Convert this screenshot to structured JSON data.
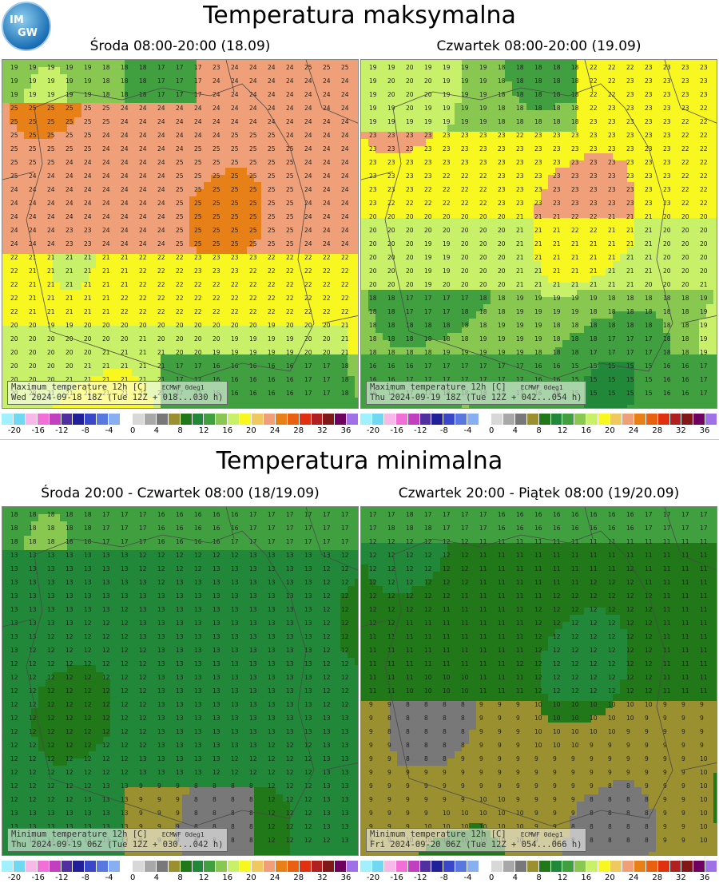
{
  "logo": {
    "text_top": "IM",
    "text_bottom": "GW"
  },
  "sections": {
    "max": {
      "title": "Temperatura maksymalna"
    },
    "min": {
      "title": "Temperatura minimalna"
    }
  },
  "panels": [
    {
      "id": "max-wed",
      "title": "Środa 08:00-20:00 (18.09)",
      "label_line1": "Maximum temperature 12h [C]",
      "label_src": "ECMWF 0deg1",
      "label_line2": "Wed 2024-09-18 18Z (Tue 12Z + 018...030 h)",
      "dominant": 24
    },
    {
      "id": "max-thu",
      "title": "Czwartek 08:00-20:00 (19.09)",
      "label_line1": "Maximum temperature 12h [C]",
      "label_src": "ECMWF 0deg1",
      "label_line2": "Thu 2024-09-19 18Z (Tue 12Z + 042...054 h)",
      "dominant": 22
    },
    {
      "id": "min-wed-thu",
      "title": "Środa 20:00 - Czwartek 08:00 (18/19.09)",
      "label_line1": "Minimum temperature 12h [C]",
      "label_src": "ECMWF 0deg1",
      "label_line2": "Thu 2024-09-19 06Z (Tue 12Z + 030...042 h)",
      "dominant": 13
    },
    {
      "id": "min-thu-fri",
      "title": "Czwartek 20:00 - Piątek 08:00 (19/20.09)",
      "label_line1": "Minimum temperature 12h [C]",
      "label_src": "ECMWF 0deg1",
      "label_line2": "Fri 2024-09-20 06Z (Tue 12Z + 054...066 h)",
      "dominant": 11
    }
  ],
  "colorbar": {
    "colors": [
      "#a0f0ff",
      "#70d8f0",
      "#f8b8e8",
      "#f070d8",
      "#c040c0",
      "#5030a0",
      "#202098",
      "#3848c8",
      "#5878e0",
      "#88b0f0",
      "#ffffff",
      "#d8d8d8",
      "#a8a8a8",
      "#787878",
      "#9a9030",
      "#207818",
      "#208838",
      "#40a040",
      "#88c850",
      "#c8f068",
      "#f8f820",
      "#f0c860",
      "#f0a078",
      "#e88018",
      "#e86010",
      "#e03010",
      "#b02020",
      "#801818",
      "#700060",
      "#a070e8"
    ],
    "tick_labels": [
      "-20",
      "-16",
      "-12",
      "-8",
      "-4",
      "0",
      "4",
      "8",
      "12",
      "16",
      "20",
      "24",
      "28",
      "32",
      "36"
    ]
  },
  "palette": {
    "t8": "#787878",
    "t9": "#9a9030",
    "t11": "#207818",
    "t13": "#208838",
    "t16": "#40a040",
    "t18": "#88c850",
    "t19": "#c8f068",
    "t21": "#f8f820",
    "t23": "#f0a078",
    "t25": "#e88018"
  }
}
